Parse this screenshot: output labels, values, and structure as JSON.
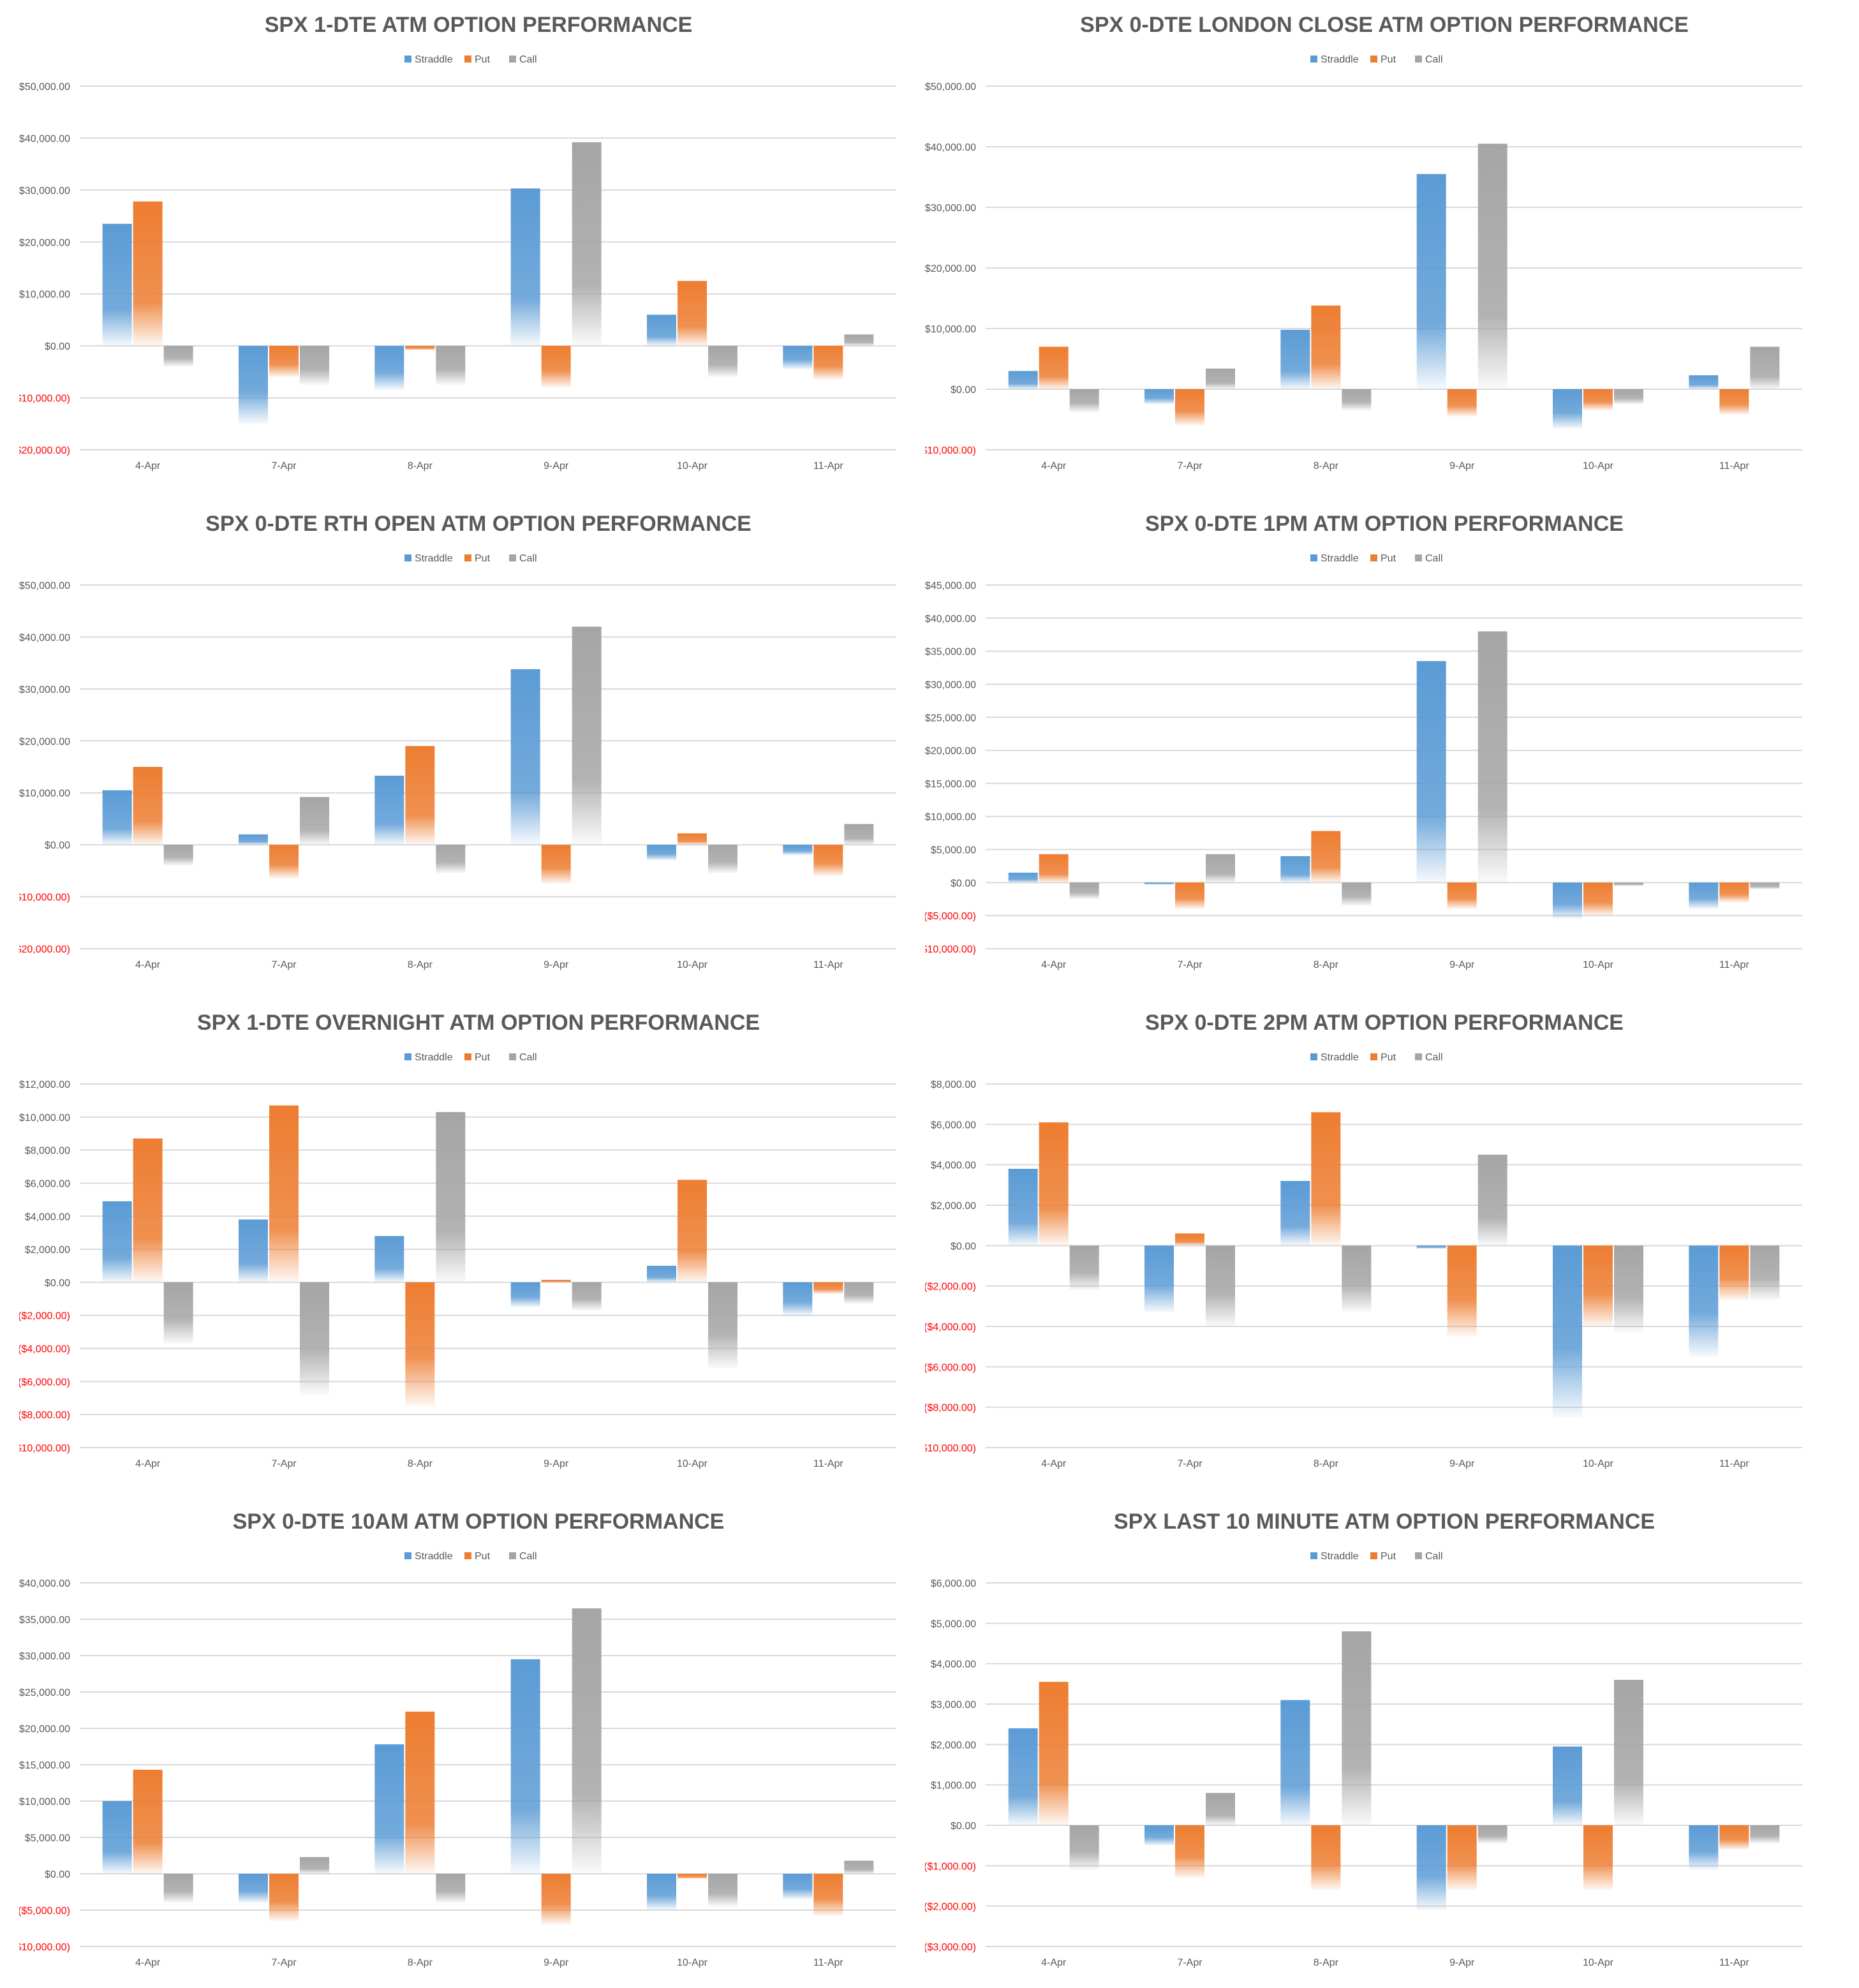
{
  "colors": {
    "straddle": "#5b9bd5",
    "put": "#ed7d31",
    "call": "#a5a5a5",
    "negative_tick": "#ff0000",
    "text": "#595959",
    "grid": "#d9d9d9"
  },
  "legend": [
    "Straddle",
    "Put",
    "Call"
  ],
  "chart_data": [
    {
      "type": "bar",
      "title": "SPX 1-DTE ATM OPTION PERFORMANCE",
      "categories": [
        "4-Apr",
        "7-Apr",
        "8-Apr",
        "9-Apr",
        "10-Apr",
        "11-Apr"
      ],
      "series": [
        {
          "name": "Straddle",
          "values": [
            23500,
            -15000,
            -8500,
            30300,
            6000,
            -4500
          ]
        },
        {
          "name": "Put",
          "values": [
            27800,
            -6000,
            -800,
            -8000,
            12500,
            -6500
          ]
        },
        {
          "name": "Call",
          "values": [
            -4000,
            -7500,
            -7500,
            39200,
            -6000,
            2200
          ]
        }
      ],
      "ylim": [
        -20000,
        50000
      ],
      "yticks": [
        "$50,000.00",
        "$40,000.00",
        "$30,000.00",
        "$20,000.00",
        "$10,000.00",
        "$0.00",
        "($10,000.00)",
        "($20,000.00)"
      ],
      "legend_position": "top-center",
      "grid": true
    },
    {
      "type": "bar",
      "title": "SPX 0-DTE  LONDON CLOSE ATM OPTION PERFORMANCE",
      "categories": [
        "4-Apr",
        "7-Apr",
        "8-Apr",
        "9-Apr",
        "10-Apr",
        "11-Apr"
      ],
      "series": [
        {
          "name": "Straddle",
          "values": [
            3000,
            -2500,
            9800,
            35500,
            -6500,
            2300
          ]
        },
        {
          "name": "Put",
          "values": [
            7000,
            -6000,
            13800,
            -4500,
            -3500,
            -4200
          ]
        },
        {
          "name": "Call",
          "values": [
            -3800,
            3400,
            -3500,
            40500,
            -2500,
            7000
          ]
        }
      ],
      "ylim": [
        -10000,
        50000
      ],
      "yticks": [
        "$50,000.00",
        "$40,000.00",
        "$30,000.00",
        "$20,000.00",
        "$10,000.00",
        "$0.00",
        "($10,000.00)"
      ],
      "legend_position": "top-center",
      "grid": true
    },
    {
      "type": "bar",
      "title": "SPX 0-DTE RTH OPEN ATM OPTION PERFORMANCE",
      "categories": [
        "4-Apr",
        "7-Apr",
        "8-Apr",
        "9-Apr",
        "10-Apr",
        "11-Apr"
      ],
      "series": [
        {
          "name": "Straddle",
          "values": [
            10500,
            2000,
            13300,
            33800,
            -3000,
            -2000
          ]
        },
        {
          "name": "Put",
          "values": [
            15000,
            -6500,
            19000,
            -7500,
            2200,
            -6000
          ]
        },
        {
          "name": "Call",
          "values": [
            -4000,
            9200,
            -5500,
            42000,
            -5500,
            4000
          ]
        }
      ],
      "ylim": [
        -20000,
        50000
      ],
      "yticks": [
        "$50,000.00",
        "$40,000.00",
        "$30,000.00",
        "$20,000.00",
        "$10,000.00",
        "$0.00",
        "($10,000.00)",
        "($20,000.00)"
      ],
      "legend_position": "top-center",
      "grid": true
    },
    {
      "type": "bar",
      "title": "SPX 0-DTE 1PM ATM OPTION PERFORMANCE",
      "categories": [
        "4-Apr",
        "7-Apr",
        "8-Apr",
        "9-Apr",
        "10-Apr",
        "11-Apr"
      ],
      "series": [
        {
          "name": "Straddle",
          "values": [
            1500,
            -300,
            4000,
            33500,
            -5500,
            -4000
          ]
        },
        {
          "name": "Put",
          "values": [
            4300,
            -4000,
            7800,
            -4000,
            -5000,
            -3000
          ]
        },
        {
          "name": "Call",
          "values": [
            -2500,
            4300,
            -3500,
            38000,
            -500,
            -1000
          ]
        }
      ],
      "ylim": [
        -10000,
        45000
      ],
      "yticks": [
        "$45,000.00",
        "$40,000.00",
        "$35,000.00",
        "$30,000.00",
        "$25,000.00",
        "$20,000.00",
        "$15,000.00",
        "$10,000.00",
        "$5,000.00",
        "$0.00",
        "($5,000.00)",
        "($10,000.00)"
      ],
      "legend_position": "top-center",
      "grid": true
    },
    {
      "type": "bar",
      "title": "SPX 1-DTE OVERNIGHT ATM OPTION PERFORMANCE",
      "categories": [
        "4-Apr",
        "7-Apr",
        "8-Apr",
        "9-Apr",
        "10-Apr",
        "11-Apr"
      ],
      "series": [
        {
          "name": "Straddle",
          "values": [
            4900,
            3800,
            2800,
            -1500,
            1000,
            -2000
          ]
        },
        {
          "name": "Put",
          "values": [
            8700,
            10700,
            -7500,
            150,
            6200,
            -700
          ]
        },
        {
          "name": "Call",
          "values": [
            -3700,
            -6800,
            10300,
            -1700,
            -5200,
            -1300
          ]
        }
      ],
      "ylim": [
        -10000,
        12000
      ],
      "yticks": [
        "$12,000.00",
        "$10,000.00",
        "$8,000.00",
        "$6,000.00",
        "$4,000.00",
        "$2,000.00",
        "$0.00",
        "($2,000.00)",
        "($4,000.00)",
        "($6,000.00)",
        "($8,000.00)",
        "($10,000.00)"
      ],
      "legend_position": "top-center",
      "grid": true
    },
    {
      "type": "bar",
      "title": "SPX 0-DTE 2PM ATM OPTION PERFORMANCE",
      "categories": [
        "4-Apr",
        "7-Apr",
        "8-Apr",
        "9-Apr",
        "10-Apr",
        "11-Apr"
      ],
      "series": [
        {
          "name": "Straddle",
          "values": [
            3800,
            -3300,
            3200,
            -150,
            -8500,
            -5500
          ]
        },
        {
          "name": "Put",
          "values": [
            6100,
            600,
            6600,
            -4500,
            -4000,
            -2700
          ]
        },
        {
          "name": "Call",
          "values": [
            -2200,
            -4000,
            -3300,
            4500,
            -4300,
            -2700
          ]
        }
      ],
      "ylim": [
        -10000,
        8000
      ],
      "yticks": [
        "$8,000.00",
        "$6,000.00",
        "$4,000.00",
        "$2,000.00",
        "$0.00",
        "($2,000.00)",
        "($4,000.00)",
        "($6,000.00)",
        "($8,000.00)",
        "($10,000.00)"
      ],
      "legend_position": "top-center",
      "grid": true
    },
    {
      "type": "bar",
      "title": "SPX 0-DTE 10AM ATM OPTION PERFORMANCE",
      "categories": [
        "4-Apr",
        "7-Apr",
        "8-Apr",
        "9-Apr",
        "10-Apr",
        "11-Apr"
      ],
      "series": [
        {
          "name": "Straddle",
          "values": [
            10000,
            -4000,
            17800,
            29500,
            -5000,
            -3500
          ]
        },
        {
          "name": "Put",
          "values": [
            14300,
            -6500,
            22300,
            -7000,
            -700,
            -5800
          ]
        },
        {
          "name": "Call",
          "values": [
            -4000,
            2300,
            -4000,
            36500,
            -4500,
            1800
          ]
        }
      ],
      "ylim": [
        -10000,
        40000
      ],
      "yticks": [
        "$40,000.00",
        "$35,000.00",
        "$30,000.00",
        "$25,000.00",
        "$20,000.00",
        "$15,000.00",
        "$10,000.00",
        "$5,000.00",
        "$0.00",
        "($5,000.00)",
        "($10,000.00)"
      ],
      "legend_position": "top-center",
      "grid": true
    },
    {
      "type": "bar",
      "title": "SPX LAST 10 MINUTE ATM OPTION PERFORMANCE",
      "categories": [
        "4-Apr",
        "7-Apr",
        "8-Apr",
        "9-Apr",
        "10-Apr",
        "11-Apr"
      ],
      "series": [
        {
          "name": "Straddle",
          "values": [
            2400,
            -500,
            3100,
            -2100,
            1950,
            -1100
          ]
        },
        {
          "name": "Put",
          "values": [
            3550,
            -1300,
            -1600,
            -1600,
            -1600,
            -600
          ]
        },
        {
          "name": "Call",
          "values": [
            -1100,
            800,
            4800,
            -450,
            3600,
            -450
          ]
        }
      ],
      "ylim": [
        -3000,
        6000
      ],
      "yticks": [
        "$6,000.00",
        "$5,000.00",
        "$4,000.00",
        "$3,000.00",
        "$2,000.00",
        "$1,000.00",
        "$0.00",
        "($1,000.00)",
        "($2,000.00)",
        "($3,000.00)"
      ],
      "legend_position": "top-center",
      "grid": true
    }
  ]
}
